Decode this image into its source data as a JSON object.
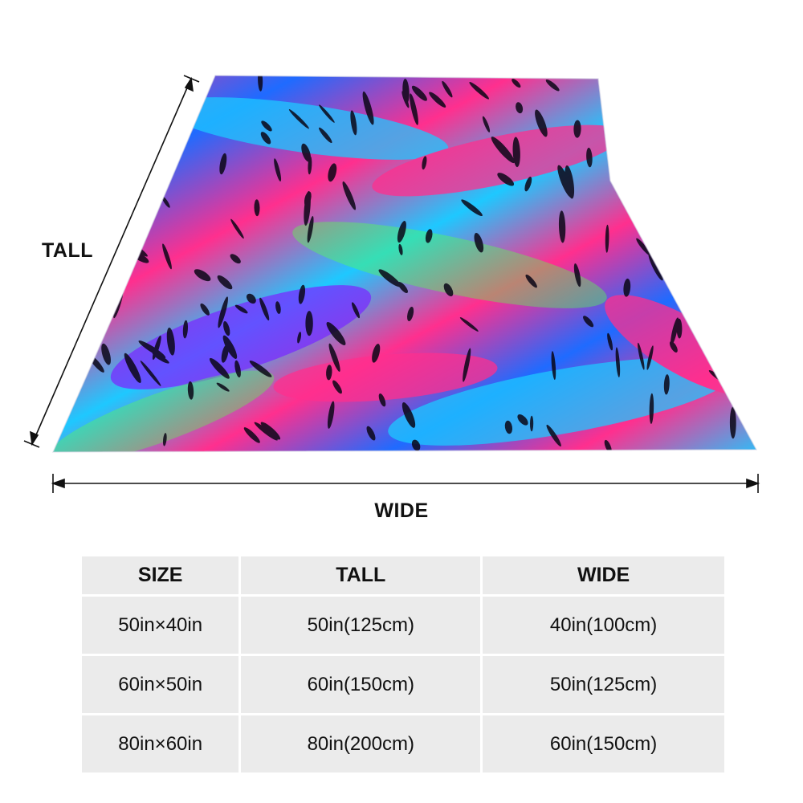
{
  "labels": {
    "tall": "TALL",
    "wide": "WIDE"
  },
  "table": {
    "headers": [
      "SIZE",
      "TALL",
      "WIDE"
    ],
    "rows": [
      [
        "50in×40in",
        "50in(125cm)",
        "40in(100cm)"
      ],
      [
        "60in×50in",
        "60in(150cm)",
        "50in(125cm)"
      ],
      [
        "80in×60in",
        "80in(200cm)",
        "60in(150cm)"
      ]
    ]
  },
  "colors": {
    "pink": "#ff2f8e",
    "blue": "#1f6bff",
    "cyan": "#1ec8ff",
    "green": "#57ff4e",
    "purple": "#7a2bff",
    "black": "#0a0616",
    "table_bg": "#ebebeb"
  }
}
